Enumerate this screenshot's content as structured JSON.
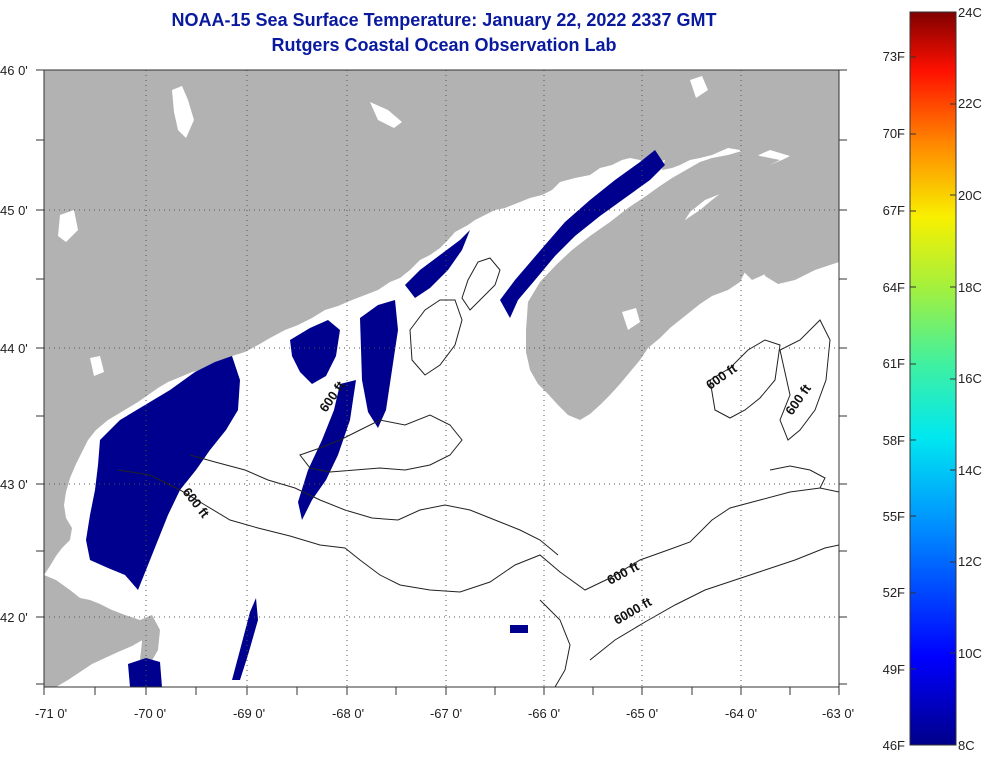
{
  "title": {
    "line1": "NOAA-15 Sea Surface Temperature:  January 22, 2022 2337 GMT",
    "line2": "Rutgers Coastal Ocean Observation Lab"
  },
  "map": {
    "lat_labels": [
      "46 0'",
      "45 0'",
      "44 0'",
      "43 0'",
      "42 0'"
    ],
    "lon_labels": [
      "-71 0'",
      "-70 0'",
      "-69 0'",
      "-68 0'",
      "-67 0'",
      "-66 0'",
      "-65 0'",
      "-64 0'",
      "-63 0'"
    ],
    "contour_labels": [
      "600 ft",
      "600 ft",
      "600 ft",
      "600 ft",
      "600 ft",
      "6000 ft"
    ]
  },
  "colorbar": {
    "fahrenheit_labels": [
      "73F",
      "70F",
      "67F",
      "64F",
      "61F",
      "58F",
      "55F",
      "52F",
      "49F",
      "46F"
    ],
    "celsius_labels": [
      "24C",
      "22C",
      "20C",
      "18C",
      "16C",
      "14C",
      "12C",
      "10C",
      "8C"
    ]
  },
  "colors": {
    "title": "#0a1a9e",
    "land": "#b2b2b2",
    "cold_water": "#00008e",
    "ocean": "#ffffff"
  }
}
